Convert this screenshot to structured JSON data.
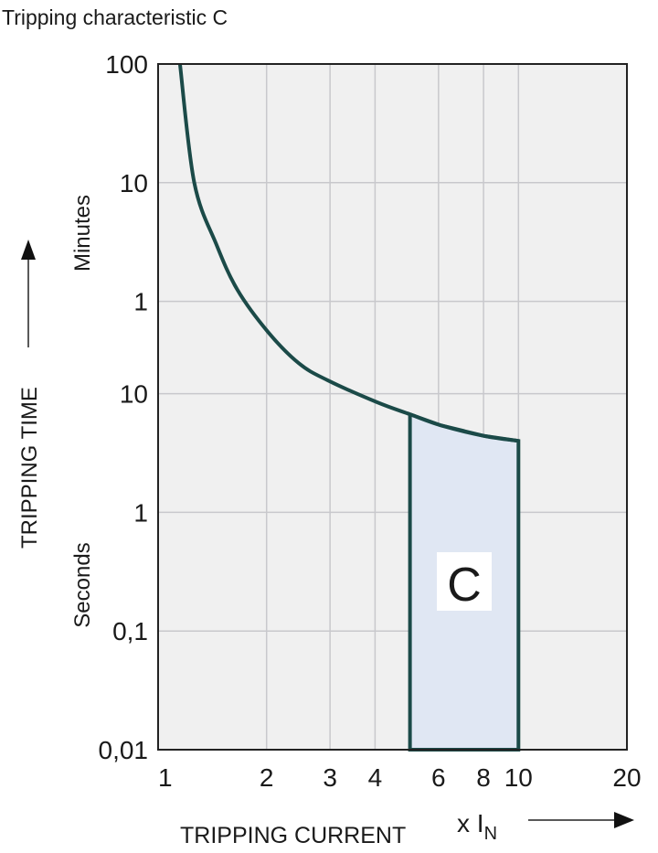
{
  "chart_data": {
    "type": "line",
    "title": "Tripping characteristic C",
    "xlabel": "TRIPPING CURRENT",
    "xunit_prefix": "x I",
    "xunit_sub": "N",
    "ylabel": "TRIPPING TIME",
    "y_unit_groups": [
      "Minutes",
      "Seconds"
    ],
    "x_scale": "log",
    "y_scale": "log",
    "xlim": [
      1,
      20
    ],
    "ylim_seconds": [
      0.01,
      6000
    ],
    "grid": true,
    "x_ticks": [
      {
        "value": 1,
        "label": "1"
      },
      {
        "value": 2,
        "label": "2"
      },
      {
        "value": 3,
        "label": "3"
      },
      {
        "value": 4,
        "label": "4"
      },
      {
        "value": 6,
        "label": "6"
      },
      {
        "value": 8,
        "label": "8"
      },
      {
        "value": 10,
        "label": "10"
      },
      {
        "value": 20,
        "label": "20"
      }
    ],
    "x_gridlines": [
      2,
      3,
      4,
      6,
      8,
      10
    ],
    "y_ticks": [
      {
        "seconds": 6000,
        "label": "100"
      },
      {
        "seconds": 600,
        "label": "10"
      },
      {
        "seconds": 60,
        "label": "1"
      },
      {
        "seconds": 10,
        "label": "10"
      },
      {
        "seconds": 1,
        "label": "1"
      },
      {
        "seconds": 0.1,
        "label": "0,1"
      },
      {
        "seconds": 0.01,
        "label": "0,01"
      }
    ],
    "curve": {
      "x": [
        1.15,
        1.26,
        1.45,
        1.66,
        2.02,
        2.46,
        2.95,
        4.04,
        5.0,
        6.1,
        8.05,
        10.0
      ],
      "y_seconds": [
        6000,
        600,
        182,
        75,
        33,
        18,
        13,
        8.5,
        6.7,
        5.4,
        4.4,
        4.0
      ]
    },
    "magnetic_band": {
      "label": "C",
      "x_from": 5,
      "x_to": 10,
      "y_bottom_seconds": 0.01
    },
    "colors": {
      "curve": "#1b4a48",
      "band_fill": "#e0e7f3",
      "plot_bg": "#f0f0f0",
      "grid": "#c8c8cc"
    }
  }
}
